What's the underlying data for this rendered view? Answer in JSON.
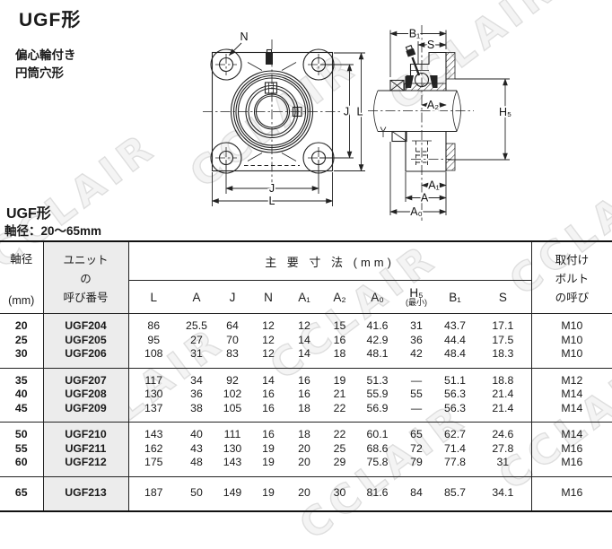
{
  "page": {
    "main_title": "UGF形",
    "subtitle_line1": "偏心輪付き",
    "subtitle_line2": "円筒穴形"
  },
  "watermark": {
    "text": "CCLAIR"
  },
  "drawing": {
    "front": {
      "n": "N",
      "j_right": "J",
      "l_right": "L",
      "j_bottom": "J",
      "l_bottom": "L"
    },
    "side": {
      "b1": "B₁",
      "s": "S",
      "a2": "A₂",
      "h5": "H₅",
      "a1": "A₁",
      "a": "A",
      "a0": "A₀"
    }
  },
  "table": {
    "section_title": "UGF形",
    "section_subtitle": "軸径：20～65mm",
    "shaft_header_top": "軸径",
    "shaft_header_bottom": "(mm)",
    "unit_header_lines": [
      "ユニット",
      "の",
      "呼び番号"
    ],
    "dims_group_header": "主 要 寸 法 (mm)",
    "dim_columns": [
      "L",
      "A",
      "J",
      "N",
      "A₁",
      "A₂",
      "A₀",
      "H₅",
      "B₁",
      "S"
    ],
    "h5_note": "(最小)",
    "bolt_header_lines": [
      "取付け",
      "ボルト",
      "の呼び"
    ],
    "groups": [
      [
        {
          "shaft": "20",
          "unit": "UGF204",
          "dims": [
            "86",
            "25.5",
            "64",
            "12",
            "12",
            "15",
            "41.6",
            "31",
            "43.7",
            "17.1"
          ],
          "bolt": "M10"
        },
        {
          "shaft": "25",
          "unit": "UGF205",
          "dims": [
            "95",
            "27",
            "70",
            "12",
            "14",
            "16",
            "42.9",
            "36",
            "44.4",
            "17.5"
          ],
          "bolt": "M10"
        },
        {
          "shaft": "30",
          "unit": "UGF206",
          "dims": [
            "108",
            "31",
            "83",
            "12",
            "14",
            "18",
            "48.1",
            "42",
            "48.4",
            "18.3"
          ],
          "bolt": "M10"
        }
      ],
      [
        {
          "shaft": "35",
          "unit": "UGF207",
          "dims": [
            "117",
            "34",
            "92",
            "14",
            "16",
            "19",
            "51.3",
            "—",
            "51.1",
            "18.8"
          ],
          "bolt": "M12"
        },
        {
          "shaft": "40",
          "unit": "UGF208",
          "dims": [
            "130",
            "36",
            "102",
            "16",
            "16",
            "21",
            "55.9",
            "55",
            "56.3",
            "21.4"
          ],
          "bolt": "M14"
        },
        {
          "shaft": "45",
          "unit": "UGF209",
          "dims": [
            "137",
            "38",
            "105",
            "16",
            "18",
            "22",
            "56.9",
            "—",
            "56.3",
            "21.4"
          ],
          "bolt": "M14"
        }
      ],
      [
        {
          "shaft": "50",
          "unit": "UGF210",
          "dims": [
            "143",
            "40",
            "111",
            "16",
            "18",
            "22",
            "60.1",
            "65",
            "62.7",
            "24.6"
          ],
          "bolt": "M14"
        },
        {
          "shaft": "55",
          "unit": "UGF211",
          "dims": [
            "162",
            "43",
            "130",
            "19",
            "20",
            "25",
            "68.6",
            "72",
            "71.4",
            "27.8"
          ],
          "bolt": "M16"
        },
        {
          "shaft": "60",
          "unit": "UGF212",
          "dims": [
            "175",
            "48",
            "143",
            "19",
            "20",
            "29",
            "75.8",
            "79",
            "77.8",
            "31"
          ],
          "bolt": "M16"
        }
      ],
      [
        {
          "shaft": "65",
          "unit": "UGF213",
          "dims": [
            "187",
            "50",
            "149",
            "19",
            "20",
            "30",
            "81.6",
            "84",
            "85.7",
            "34.1"
          ],
          "bolt": "M16"
        }
      ]
    ]
  }
}
